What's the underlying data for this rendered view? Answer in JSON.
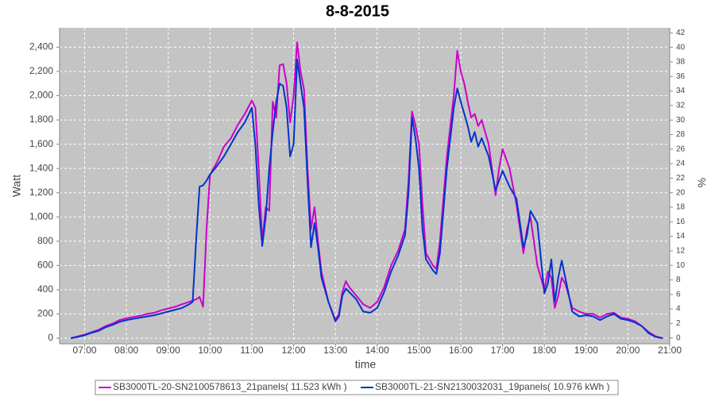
{
  "chart_data": {
    "type": "line",
    "title": "8-8-2015",
    "x_label": "time",
    "y_label": "Watt",
    "y2_label": "%",
    "grid": true,
    "legend": "bottom",
    "x": [
      "06:40",
      "06:50",
      "07:00",
      "07:10",
      "07:20",
      "07:30",
      "07:40",
      "07:50",
      "08:00",
      "08:10",
      "08:20",
      "08:30",
      "08:40",
      "08:50",
      "09:00",
      "09:10",
      "09:20",
      "09:30",
      "09:35",
      "09:40",
      "09:45",
      "09:50",
      "09:55",
      "10:00",
      "10:10",
      "10:20",
      "10:30",
      "10:40",
      "10:50",
      "11:00",
      "11:05",
      "11:10",
      "11:15",
      "11:20",
      "11:25",
      "11:30",
      "11:35",
      "11:40",
      "11:45",
      "11:50",
      "11:55",
      "12:00",
      "12:05",
      "12:10",
      "12:15",
      "12:20",
      "12:25",
      "12:30",
      "12:35",
      "12:40",
      "12:50",
      "13:00",
      "13:05",
      "13:10",
      "13:15",
      "13:20",
      "13:30",
      "13:40",
      "13:50",
      "14:00",
      "14:10",
      "14:20",
      "14:30",
      "14:40",
      "14:45",
      "14:50",
      "14:55",
      "15:00",
      "15:05",
      "15:10",
      "15:20",
      "15:25",
      "15:30",
      "15:40",
      "15:50",
      "15:55",
      "16:00",
      "16:05",
      "16:10",
      "16:15",
      "16:20",
      "16:25",
      "16:30",
      "16:40",
      "16:50",
      "16:55",
      "17:00",
      "17:10",
      "17:20",
      "17:30",
      "17:35",
      "17:40",
      "17:45",
      "17:50",
      "18:00",
      "18:05",
      "18:10",
      "18:15",
      "18:20",
      "18:25",
      "18:30",
      "18:40",
      "18:50",
      "19:00",
      "19:10",
      "19:20",
      "19:30",
      "19:40",
      "19:50",
      "20:00",
      "20:10",
      "20:20",
      "20:30",
      "20:40",
      "20:50"
    ],
    "series": [
      {
        "name": "SB3000TL-20-SN2100578613_21panels( 11.523 kWh )",
        "color": "#cc00cc",
        "values": [
          0,
          15,
          30,
          50,
          70,
          100,
          120,
          150,
          165,
          175,
          185,
          200,
          210,
          230,
          245,
          260,
          280,
          300,
          310,
          320,
          340,
          260,
          900,
          1350,
          1450,
          1580,
          1650,
          1760,
          1850,
          1960,
          1900,
          1400,
          800,
          1080,
          1050,
          1950,
          1820,
          2250,
          2260,
          2100,
          1780,
          2000,
          2440,
          2200,
          2050,
          1400,
          900,
          1080,
          800,
          550,
          300,
          150,
          200,
          380,
          470,
          420,
          350,
          280,
          250,
          300,
          420,
          600,
          720,
          900,
          1300,
          1870,
          1750,
          1600,
          1100,
          700,
          600,
          570,
          800,
          1500,
          2000,
          2370,
          2200,
          2100,
          1950,
          1820,
          1850,
          1750,
          1800,
          1600,
          1180,
          1400,
          1560,
          1400,
          1100,
          700,
          900,
          1000,
          800,
          600,
          400,
          550,
          500,
          250,
          350,
          500,
          450,
          250,
          220,
          200,
          200,
          170,
          200,
          210,
          170,
          160,
          140,
          100,
          50,
          15,
          0
        ]
      },
      {
        "name": "SB3000TL-21-SN2130032031_19panels( 10.976 kWh )",
        "color": "#0033cc",
        "values": [
          0,
          10,
          25,
          45,
          60,
          90,
          110,
          135,
          150,
          160,
          170,
          180,
          190,
          205,
          220,
          235,
          250,
          280,
          300,
          800,
          1250,
          1260,
          1300,
          1350,
          1420,
          1500,
          1600,
          1700,
          1780,
          1900,
          1600,
          1100,
          760,
          1000,
          1400,
          1700,
          1950,
          2100,
          2080,
          1900,
          1500,
          1600,
          2300,
          2100,
          1900,
          1300,
          750,
          950,
          750,
          500,
          300,
          140,
          180,
          350,
          410,
          380,
          320,
          220,
          210,
          250,
          380,
          550,
          680,
          850,
          1200,
          1820,
          1650,
          1400,
          900,
          650,
          560,
          530,
          700,
          1400,
          1900,
          2060,
          1950,
          1850,
          1750,
          1620,
          1700,
          1580,
          1650,
          1500,
          1220,
          1300,
          1380,
          1250,
          1150,
          750,
          850,
          1050,
          1000,
          950,
          370,
          450,
          650,
          300,
          500,
          640,
          500,
          220,
          180,
          190,
          180,
          150,
          180,
          200,
          160,
          150,
          130,
          100,
          40,
          10,
          0
        ]
      }
    ],
    "xlim": [
      "06:24",
      "21:00"
    ],
    "xticks": [
      "07:00",
      "08:00",
      "09:00",
      "10:00",
      "11:00",
      "12:00",
      "13:00",
      "14:00",
      "15:00",
      "16:00",
      "17:00",
      "18:00",
      "19:00",
      "20:00",
      "21:00"
    ],
    "ylim": [
      -46,
      2560
    ],
    "yticks": [
      0,
      200,
      400,
      600,
      800,
      {
        "value": 1000,
        "label": "1,000"
      },
      {
        "value": 1200,
        "label": "1,200"
      },
      {
        "value": 1400,
        "label": "1,400"
      },
      {
        "value": 1600,
        "label": "1,600"
      },
      {
        "value": 1800,
        "label": "1,800"
      },
      {
        "value": 2000,
        "label": "2,000"
      },
      {
        "value": 2200,
        "label": "2,200"
      },
      {
        "value": 2400,
        "label": "2,400"
      }
    ],
    "y2lim": [
      -0.8,
      42.7
    ],
    "y2ticks": [
      0,
      2,
      4,
      6,
      8,
      10,
      12,
      14,
      16,
      18,
      20,
      22,
      24,
      26,
      28,
      30,
      32,
      34,
      36,
      38,
      40,
      42
    ]
  }
}
